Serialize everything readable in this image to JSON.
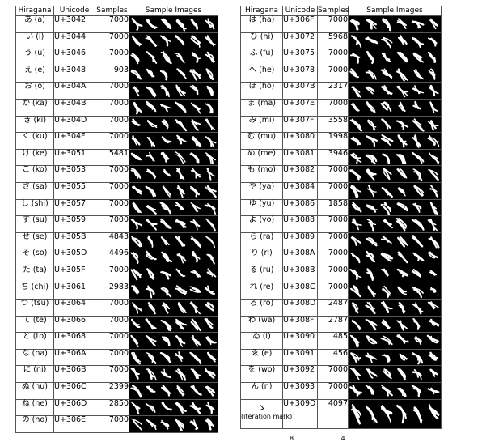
{
  "headers": {
    "hiragana": "Hiragana",
    "unicode": "Unicode",
    "samples": "Samples",
    "images": "Sample Images"
  },
  "left_rows": [
    {
      "char": "あ (a)",
      "code": "U+3042",
      "samples": "7000"
    },
    {
      "char": "い (i)",
      "code": "U+3044",
      "samples": "7000"
    },
    {
      "char": "う (u)",
      "code": "U+3046",
      "samples": "7000"
    },
    {
      "char": "え (e)",
      "code": "U+3048",
      "samples": "903"
    },
    {
      "char": "お (o)",
      "code": "U+304A",
      "samples": "7000"
    },
    {
      "char": "か (ka)",
      "code": "U+304B",
      "samples": "7000"
    },
    {
      "char": "き (ki)",
      "code": "U+304D",
      "samples": "7000"
    },
    {
      "char": "く (ku)",
      "code": "U+304F",
      "samples": "7000"
    },
    {
      "char": "け (ke)",
      "code": "U+3051",
      "samples": "5481"
    },
    {
      "char": "こ (ko)",
      "code": "U+3053",
      "samples": "7000"
    },
    {
      "char": "さ (sa)",
      "code": "U+3055",
      "samples": "7000"
    },
    {
      "char": "し (shi)",
      "code": "U+3057",
      "samples": "7000"
    },
    {
      "char": "す (su)",
      "code": "U+3059",
      "samples": "7000"
    },
    {
      "char": "せ (se)",
      "code": "U+305B",
      "samples": "4843"
    },
    {
      "char": "そ (so)",
      "code": "U+305D",
      "samples": "4496"
    },
    {
      "char": "た (ta)",
      "code": "U+305F",
      "samples": "7000"
    },
    {
      "char": "ち (chi)",
      "code": "U+3061",
      "samples": "2983"
    },
    {
      "char": "つ (tsu)",
      "code": "U+3064",
      "samples": "7000"
    },
    {
      "char": "て (te)",
      "code": "U+3066",
      "samples": "7000"
    },
    {
      "char": "と (to)",
      "code": "U+3068",
      "samples": "7000"
    },
    {
      "char": "な (na)",
      "code": "U+306A",
      "samples": "7000"
    },
    {
      "char": "に (ni)",
      "code": "U+306B",
      "samples": "7000"
    },
    {
      "char": "ぬ (nu)",
      "code": "U+306C",
      "samples": "2399"
    },
    {
      "char": "ね (ne)",
      "code": "U+306D",
      "samples": "2850"
    },
    {
      "char": "の (no)",
      "code": "U+306E",
      "samples": "7000"
    }
  ],
  "right_rows": [
    {
      "char": "は (ha)",
      "code": "U+306F",
      "samples": "7000"
    },
    {
      "char": "ひ (hi)",
      "code": "U+3072",
      "samples": "5968"
    },
    {
      "char": "ふ (fu)",
      "code": "U+3075",
      "samples": "7000"
    },
    {
      "char": "へ (he)",
      "code": "U+3078",
      "samples": "7000"
    },
    {
      "char": "ほ (ho)",
      "code": "U+307B",
      "samples": "2317"
    },
    {
      "char": "ま (ma)",
      "code": "U+307E",
      "samples": "7000"
    },
    {
      "char": "み (mi)",
      "code": "U+307F",
      "samples": "3558"
    },
    {
      "char": "む (mu)",
      "code": "U+3080",
      "samples": "1998"
    },
    {
      "char": "め (me)",
      "code": "U+3081",
      "samples": "3946"
    },
    {
      "char": "も (mo)",
      "code": "U+3082",
      "samples": "7000"
    },
    {
      "char": "や (ya)",
      "code": "U+3084",
      "samples": "7000"
    },
    {
      "char": "ゆ (yu)",
      "code": "U+3086",
      "samples": "1858"
    },
    {
      "char": "よ (yo)",
      "code": "U+3088",
      "samples": "7000"
    },
    {
      "char": "ら (ra)",
      "code": "U+3089",
      "samples": "7000"
    },
    {
      "char": "り (ri)",
      "code": "U+308A",
      "samples": "7000"
    },
    {
      "char": "る (ru)",
      "code": "U+308B",
      "samples": "7000"
    },
    {
      "char": "れ (re)",
      "code": "U+308C",
      "samples": "7000"
    },
    {
      "char": "ろ (ro)",
      "code": "U+308D",
      "samples": "2487"
    },
    {
      "char": "わ (wa)",
      "code": "U+308F",
      "samples": "2787"
    },
    {
      "char": "ゐ (i)",
      "code": "U+3090",
      "samples": "485"
    },
    {
      "char": "ゑ (e)",
      "code": "U+3091",
      "samples": "456"
    },
    {
      "char": "を (wo)",
      "code": "U+3092",
      "samples": "7000"
    },
    {
      "char": "ん (n)",
      "code": "U+3093",
      "samples": "7000"
    },
    {
      "char": "ゝ",
      "char_note": "(iteration mark)",
      "code": "U+309D",
      "samples": "4097"
    }
  ],
  "footnote": "8 4"
}
